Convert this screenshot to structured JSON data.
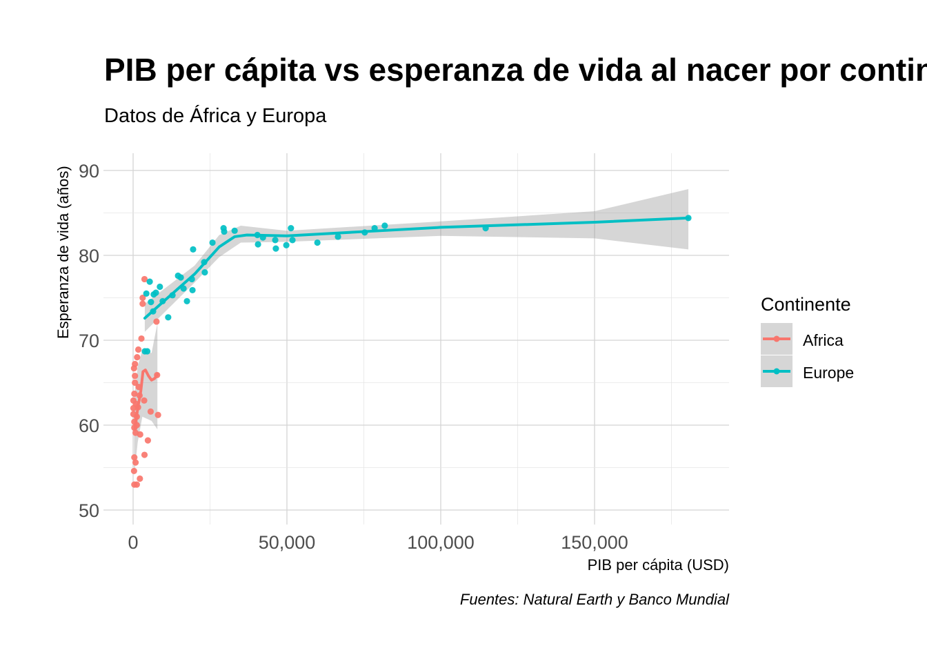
{
  "chart_data": {
    "type": "scatter",
    "title": "PIB per cápita vs esperanza de vida al nacer por continente",
    "subtitle": "Datos de África y Europa",
    "caption": "Fuentes: Natural Earth y Banco Mundial",
    "xlabel": "PIB per cápita  (USD)",
    "ylabel": "Esperanza de vida (años)",
    "xlim": [
      -8000,
      186000
    ],
    "ylim": [
      48,
      92
    ],
    "x_ticks": [
      0,
      50000,
      100000,
      150000
    ],
    "x_tick_labels": [
      "0",
      "50,000",
      "100,000",
      "150,000"
    ],
    "y_ticks": [
      50,
      60,
      70,
      80,
      90
    ],
    "y_tick_labels": [
      "50",
      "60",
      "70",
      "80",
      "90"
    ],
    "grid": true,
    "legend": {
      "title": "Continente",
      "position": "right"
    },
    "series": [
      {
        "name": "Africa",
        "color": "#F8766D",
        "points": [
          [
            3700,
            77.2
          ],
          [
            3100,
            75.0
          ],
          [
            3100,
            74.3
          ],
          [
            7600,
            72.2
          ],
          [
            2700,
            70.2
          ],
          [
            1700,
            68.9
          ],
          [
            1300,
            68.0
          ],
          [
            600,
            67.2
          ],
          [
            300,
            66.7
          ],
          [
            7800,
            65.9
          ],
          [
            600,
            65.8
          ],
          [
            600,
            65.0
          ],
          [
            400,
            63.7
          ],
          [
            3600,
            62.9
          ],
          [
            100,
            62.9
          ],
          [
            900,
            62.5
          ],
          [
            100,
            62.0
          ],
          [
            1600,
            62.1
          ],
          [
            5700,
            61.6
          ],
          [
            8100,
            61.2
          ],
          [
            100,
            61.3
          ],
          [
            1200,
            61.0
          ],
          [
            400,
            60.4
          ],
          [
            1200,
            60.0
          ],
          [
            400,
            59.7
          ],
          [
            800,
            59.1
          ],
          [
            2300,
            58.9
          ],
          [
            4800,
            58.2
          ],
          [
            400,
            56.2
          ],
          [
            3700,
            56.5
          ],
          [
            800,
            55.6
          ],
          [
            300,
            54.6
          ],
          [
            2200,
            53.7
          ],
          [
            400,
            53.0
          ],
          [
            1200,
            53.0
          ],
          [
            1800,
            64.5
          ],
          [
            2100,
            63.5
          ]
        ],
        "smooth": [
          [
            600,
            59.5
          ],
          [
            1500,
            62.0
          ],
          [
            2500,
            64.0
          ],
          [
            3200,
            66.3
          ],
          [
            4000,
            66.5
          ],
          [
            5000,
            65.8
          ],
          [
            6000,
            65.3
          ],
          [
            7000,
            65.5
          ],
          [
            7900,
            66.0
          ]
        ],
        "ribbon_upper": [
          [
            300,
            63
          ],
          [
            1500,
            67
          ],
          [
            3000,
            68.8
          ],
          [
            6000,
            68.5
          ],
          [
            7900,
            72
          ]
        ],
        "ribbon_lower": [
          [
            300,
            54
          ],
          [
            1500,
            58
          ],
          [
            3000,
            61
          ],
          [
            6000,
            60.5
          ],
          [
            7900,
            59.5
          ]
        ]
      },
      {
        "name": "Europe",
        "color": "#00BFC4",
        "points": [
          [
            3800,
            68.7
          ],
          [
            4600,
            68.7
          ],
          [
            4300,
            75.5
          ],
          [
            5400,
            76.9
          ],
          [
            5800,
            74.5
          ],
          [
            6700,
            75.4
          ],
          [
            7400,
            75.6
          ],
          [
            6500,
            73.4
          ],
          [
            8700,
            76.3
          ],
          [
            9600,
            74.6
          ],
          [
            11400,
            72.7
          ],
          [
            12800,
            75.3
          ],
          [
            14600,
            77.6
          ],
          [
            15500,
            77.4
          ],
          [
            16400,
            76.1
          ],
          [
            17500,
            74.6
          ],
          [
            19100,
            77.2
          ],
          [
            19300,
            75.9
          ],
          [
            19500,
            80.7
          ],
          [
            23100,
            79.2
          ],
          [
            23300,
            78.0
          ],
          [
            25800,
            81.5
          ],
          [
            29400,
            83.2
          ],
          [
            29600,
            82.8
          ],
          [
            33000,
            82.9
          ],
          [
            40400,
            82.4
          ],
          [
            40600,
            81.3
          ],
          [
            42200,
            82.1
          ],
          [
            46200,
            81.8
          ],
          [
            46400,
            80.8
          ],
          [
            49800,
            81.2
          ],
          [
            51300,
            83.2
          ],
          [
            51800,
            81.8
          ],
          [
            59900,
            81.5
          ],
          [
            66600,
            82.2
          ],
          [
            75300,
            82.7
          ],
          [
            78500,
            83.2
          ],
          [
            81800,
            83.5
          ],
          [
            114600,
            83.2
          ],
          [
            180500,
            84.4
          ]
        ],
        "smooth": [
          [
            3800,
            72.6
          ],
          [
            10000,
            74.6
          ],
          [
            20000,
            77.8
          ],
          [
            28000,
            81.0
          ],
          [
            33000,
            82.2
          ],
          [
            37000,
            82.4
          ],
          [
            50000,
            82.3
          ],
          [
            75000,
            82.8
          ],
          [
            100000,
            83.3
          ],
          [
            150000,
            83.9
          ],
          [
            180500,
            84.4
          ]
        ],
        "ribbon_upper": [
          [
            3800,
            74.3
          ],
          [
            20000,
            78.8
          ],
          [
            28000,
            82.4
          ],
          [
            35000,
            83.5
          ],
          [
            50000,
            82.9
          ],
          [
            100000,
            84.0
          ],
          [
            150000,
            85.2
          ],
          [
            180500,
            87.8
          ]
        ],
        "ribbon_lower": [
          [
            3800,
            71.0
          ],
          [
            20000,
            76.8
          ],
          [
            28000,
            79.8
          ],
          [
            35000,
            81.5
          ],
          [
            50000,
            81.6
          ],
          [
            100000,
            82.3
          ],
          [
            150000,
            82.0
          ],
          [
            180500,
            80.7
          ]
        ]
      }
    ]
  }
}
